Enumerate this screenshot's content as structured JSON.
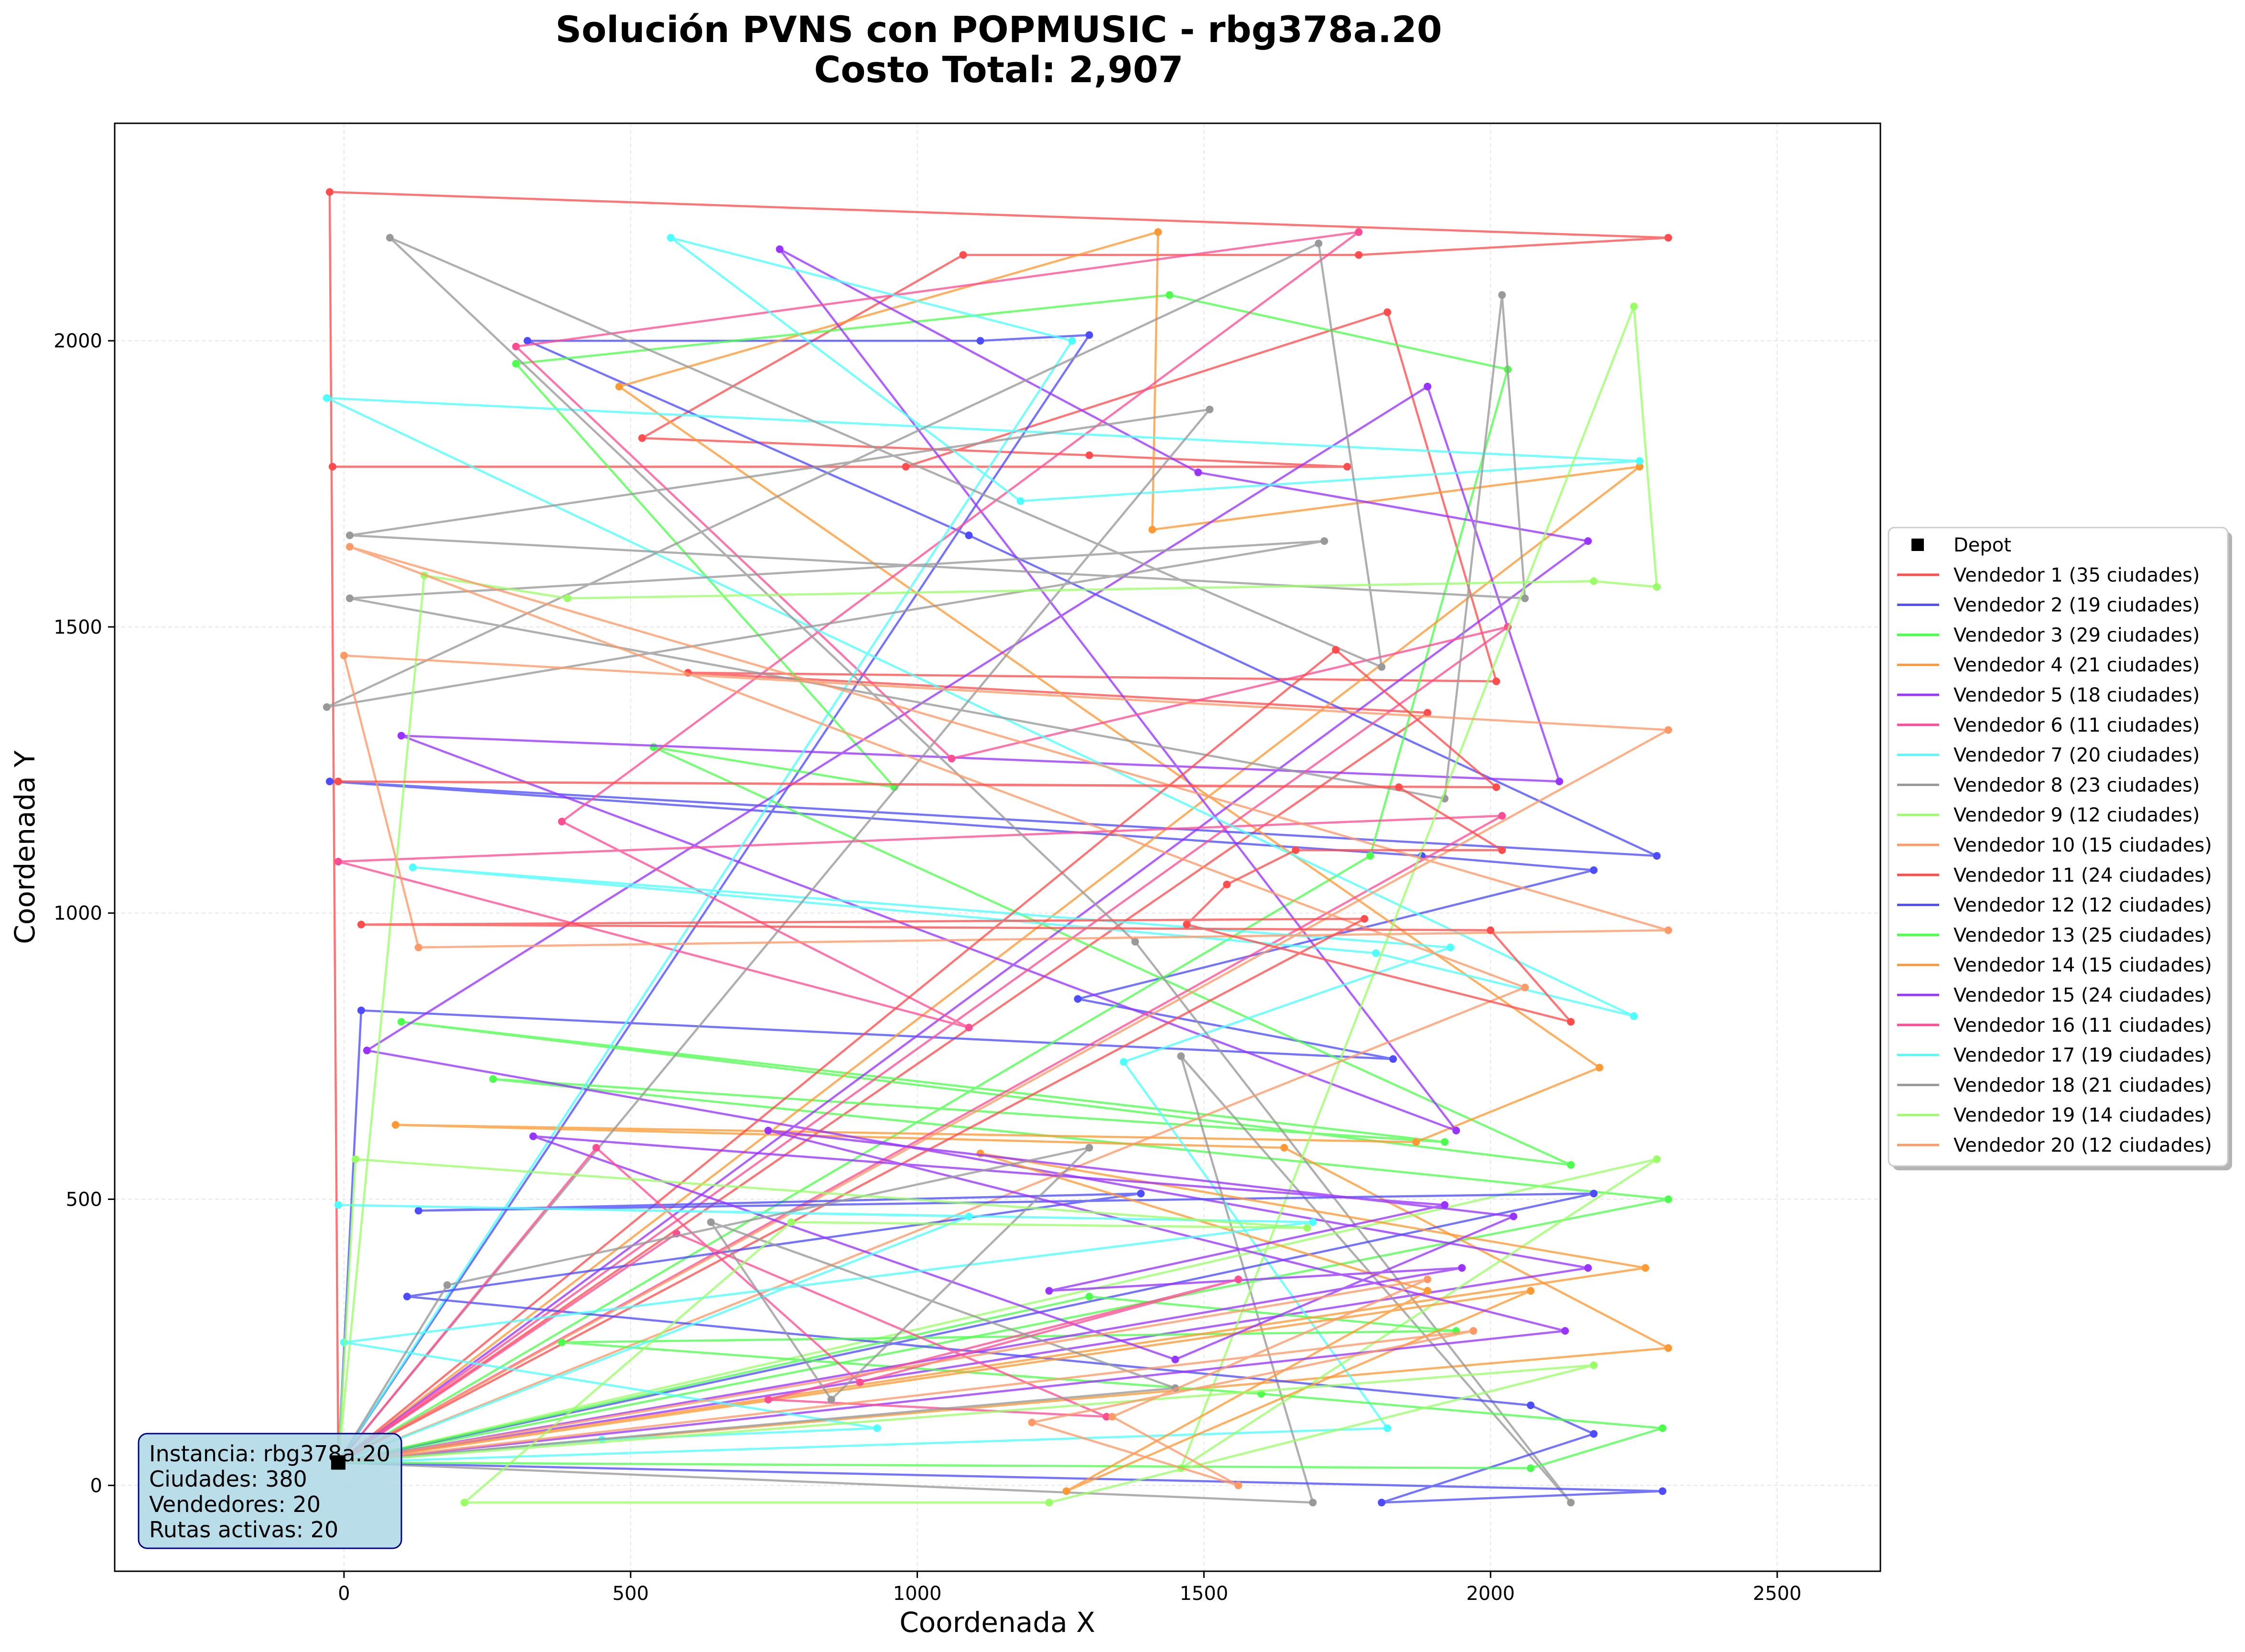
{
  "chart_data": {
    "type": "line",
    "title_line1": "Solución PVNS con POPMUSIC - rbg378a.20",
    "title_line2": "Costo Total: 2,907",
    "xlabel": "Coordenada X",
    "ylabel": "Coordenada Y",
    "xlim": [
      -400,
      2680
    ],
    "ylim": [
      -150,
      2380
    ],
    "x_ticks": [
      0,
      500,
      1000,
      1500,
      2000,
      2500
    ],
    "y_ticks": [
      0,
      500,
      1000,
      1500,
      2000
    ],
    "grid": true,
    "legend_position": "right-center",
    "depot": {
      "label": "Depot",
      "x": -10,
      "y": 40,
      "color": "#000000"
    },
    "info_box": {
      "lines": [
        "Instancia: rbg378a.20",
        "Ciudades: 380",
        "Vendedores: 20",
        "Rutas activas: 20"
      ],
      "background": "#add8e6",
      "border": "#00008b"
    },
    "series": [
      {
        "name": "Vendedor 1 (35 ciudades)",
        "color": "#ff4d4d",
        "points": [
          [
            -10,
            40
          ],
          [
            -25,
            2260
          ],
          [
            2310,
            2180
          ],
          [
            1770,
            2150
          ],
          [
            1080,
            2150
          ],
          [
            520,
            1830
          ],
          [
            1300,
            1800
          ],
          [
            1750,
            1780
          ],
          [
            -20,
            1780
          ],
          [
            980,
            1780
          ],
          [
            1820,
            2050
          ],
          [
            2010,
            1405
          ],
          [
            600,
            1420
          ],
          [
            1890,
            1350
          ],
          [
            -10,
            40
          ]
        ]
      },
      {
        "name": "Vendedor 2 (19 ciudades)",
        "color": "#4d4dff",
        "points": [
          [
            -10,
            40
          ],
          [
            30,
            830
          ],
          [
            1830,
            745
          ],
          [
            1280,
            850
          ],
          [
            2180,
            1075
          ],
          [
            1880,
            1100
          ],
          [
            -25,
            1230
          ],
          [
            2290,
            1100
          ],
          [
            1090,
            1660
          ],
          [
            320,
            2000
          ],
          [
            1110,
            2000
          ],
          [
            1300,
            2010
          ],
          [
            -10,
            40
          ]
        ]
      },
      {
        "name": "Vendedor 3 (29 ciudades)",
        "color": "#4dff4d",
        "points": [
          [
            -10,
            40
          ],
          [
            2310,
            500
          ],
          [
            260,
            710
          ],
          [
            1920,
            600
          ],
          [
            100,
            810
          ],
          [
            2140,
            560
          ],
          [
            540,
            1290
          ],
          [
            960,
            1220
          ],
          [
            300,
            1960
          ],
          [
            1440,
            2080
          ],
          [
            2030,
            1950
          ],
          [
            1790,
            1100
          ],
          [
            -10,
            40
          ]
        ]
      },
      {
        "name": "Vendedor 4 (21 ciudades)",
        "color": "#ff9933",
        "points": [
          [
            -10,
            40
          ],
          [
            2310,
            240
          ],
          [
            1640,
            590
          ],
          [
            90,
            630
          ],
          [
            1870,
            600
          ],
          [
            2190,
            730
          ],
          [
            480,
            1920
          ],
          [
            1420,
            2190
          ],
          [
            1410,
            1670
          ],
          [
            2260,
            1780
          ],
          [
            -10,
            40
          ]
        ]
      },
      {
        "name": "Vendedor 5 (18 ciudades)",
        "color": "#9933ff",
        "points": [
          [
            -10,
            40
          ],
          [
            2170,
            380
          ],
          [
            40,
            760
          ],
          [
            1890,
            1920
          ],
          [
            2120,
            1230
          ],
          [
            100,
            1310
          ],
          [
            1940,
            620
          ],
          [
            760,
            2160
          ],
          [
            1490,
            1770
          ],
          [
            2170,
            1650
          ],
          [
            -10,
            40
          ]
        ]
      },
      {
        "name": "Vendedor 6 (11 ciudades)",
        "color": "#ff4d94",
        "points": [
          [
            -10,
            40
          ],
          [
            2020,
            1170
          ],
          [
            -10,
            1090
          ],
          [
            1090,
            800
          ],
          [
            380,
            1160
          ],
          [
            1770,
            2190
          ],
          [
            300,
            1990
          ],
          [
            1060,
            1270
          ],
          [
            2030,
            1500
          ],
          [
            -10,
            40
          ]
        ]
      },
      {
        "name": "Vendedor 7 (20 ciudades)",
        "color": "#4dffff",
        "points": [
          [
            -10,
            40
          ],
          [
            1820,
            100
          ],
          [
            1360,
            740
          ],
          [
            1930,
            940
          ],
          [
            120,
            1080
          ],
          [
            1800,
            930
          ],
          [
            2250,
            820
          ],
          [
            -30,
            1900
          ],
          [
            2260,
            1790
          ],
          [
            1180,
            1720
          ],
          [
            570,
            2180
          ],
          [
            1270,
            2000
          ],
          [
            -10,
            40
          ]
        ]
      },
      {
        "name": "Vendedor 8 (23 ciudades)",
        "color": "#999999",
        "points": [
          [
            -10,
            40
          ],
          [
            1690,
            -30
          ],
          [
            1460,
            750
          ],
          [
            2140,
            -30
          ],
          [
            1380,
            950
          ],
          [
            80,
            2180
          ],
          [
            1810,
            1430
          ],
          [
            1700,
            2170
          ],
          [
            -30,
            1360
          ],
          [
            1710,
            1650
          ],
          [
            10,
            1550
          ],
          [
            1920,
            1200
          ],
          [
            2020,
            2080
          ],
          [
            2060,
            1550
          ],
          [
            10,
            1660
          ],
          [
            1510,
            1880
          ],
          [
            -10,
            40
          ]
        ]
      },
      {
        "name": "Vendedor 9 (12 ciudades)",
        "color": "#99ff66",
        "points": [
          [
            -10,
            40
          ],
          [
            2290,
            570
          ],
          [
            1460,
            30
          ],
          [
            2250,
            2060
          ],
          [
            2290,
            1570
          ],
          [
            2180,
            1580
          ],
          [
            390,
            1550
          ],
          [
            140,
            1590
          ],
          [
            -10,
            40
          ]
        ]
      },
      {
        "name": "Vendedor 10 (15 ciudades)",
        "color": "#ff9966",
        "points": [
          [
            -10,
            40
          ],
          [
            2310,
            1320
          ],
          [
            0,
            1450
          ],
          [
            130,
            940
          ],
          [
            2310,
            970
          ],
          [
            10,
            1640
          ],
          [
            2060,
            870
          ],
          [
            -10,
            40
          ]
        ]
      },
      {
        "name": "Vendedor 11 (24 ciudades)",
        "color": "#ff4d4d",
        "points": [
          [
            -10,
            40
          ],
          [
            1780,
            990
          ],
          [
            30,
            980
          ],
          [
            2000,
            970
          ],
          [
            2140,
            810
          ],
          [
            1470,
            980
          ],
          [
            1540,
            1050
          ],
          [
            1660,
            1110
          ],
          [
            2020,
            1110
          ],
          [
            1840,
            1220
          ],
          [
            -10,
            1230
          ],
          [
            2010,
            1220
          ],
          [
            1730,
            1460
          ],
          [
            -10,
            40
          ]
        ]
      },
      {
        "name": "Vendedor 12 (12 ciudades)",
        "color": "#4d4dff",
        "points": [
          [
            -10,
            40
          ],
          [
            2300,
            -10
          ],
          [
            1810,
            -30
          ],
          [
            2180,
            90
          ],
          [
            2070,
            140
          ],
          [
            110,
            330
          ],
          [
            1390,
            510
          ],
          [
            130,
            480
          ],
          [
            2180,
            510
          ],
          [
            -10,
            40
          ]
        ]
      },
      {
        "name": "Vendedor 13 (25 ciudades)",
        "color": "#4dff4d",
        "points": [
          [
            -10,
            40
          ],
          [
            2070,
            30
          ],
          [
            2300,
            100
          ],
          [
            1600,
            160
          ],
          [
            380,
            250
          ],
          [
            1940,
            270
          ],
          [
            1300,
            330
          ],
          [
            -10,
            40
          ]
        ]
      },
      {
        "name": "Vendedor 14 (15 ciudades)",
        "color": "#ff9933",
        "points": [
          [
            -10,
            40
          ],
          [
            2270,
            380
          ],
          [
            1110,
            580
          ],
          [
            1890,
            340
          ],
          [
            1260,
            -10
          ],
          [
            2070,
            340
          ],
          [
            -10,
            40
          ]
        ]
      },
      {
        "name": "Vendedor 15 (24 ciudades)",
        "color": "#9933ff",
        "points": [
          [
            -10,
            40
          ],
          [
            2130,
            270
          ],
          [
            740,
            620
          ],
          [
            2040,
            470
          ],
          [
            1450,
            220
          ],
          [
            330,
            610
          ],
          [
            1920,
            490
          ],
          [
            1230,
            340
          ],
          [
            1950,
            380
          ],
          [
            -10,
            40
          ]
        ]
      },
      {
        "name": "Vendedor 16 (11 ciudades)",
        "color": "#ff4d94",
        "points": [
          [
            -10,
            40
          ],
          [
            580,
            440
          ],
          [
            1330,
            120
          ],
          [
            740,
            150
          ],
          [
            1560,
            360
          ],
          [
            900,
            180
          ],
          [
            440,
            590
          ],
          [
            -10,
            40
          ]
        ]
      },
      {
        "name": "Vendedor 17 (19 ciudades)",
        "color": "#4dffff",
        "points": [
          [
            -10,
            40
          ],
          [
            1090,
            470
          ],
          [
            -10,
            490
          ],
          [
            1690,
            460
          ],
          [
            0,
            250
          ],
          [
            930,
            100
          ],
          [
            450,
            80
          ],
          [
            -10,
            40
          ]
        ]
      },
      {
        "name": "Vendedor 18 (21 ciudades)",
        "color": "#999999",
        "points": [
          [
            -10,
            40
          ],
          [
            1450,
            170
          ],
          [
            640,
            460
          ],
          [
            850,
            150
          ],
          [
            1300,
            590
          ],
          [
            180,
            350
          ],
          [
            -10,
            40
          ]
        ]
      },
      {
        "name": "Vendedor 19 (14 ciudades)",
        "color": "#99ff66",
        "points": [
          [
            -10,
            40
          ],
          [
            2180,
            210
          ],
          [
            1230,
            -30
          ],
          [
            210,
            -30
          ],
          [
            780,
            460
          ],
          [
            1680,
            450
          ],
          [
            20,
            570
          ],
          [
            -10,
            40
          ]
        ]
      },
      {
        "name": "Vendedor 20 (12 ciudades)",
        "color": "#ff9966",
        "points": [
          [
            -10,
            40
          ],
          [
            1890,
            360
          ],
          [
            1340,
            120
          ],
          [
            1560,
            0
          ],
          [
            1200,
            110
          ],
          [
            1970,
            270
          ],
          [
            -10,
            40
          ]
        ]
      }
    ]
  }
}
